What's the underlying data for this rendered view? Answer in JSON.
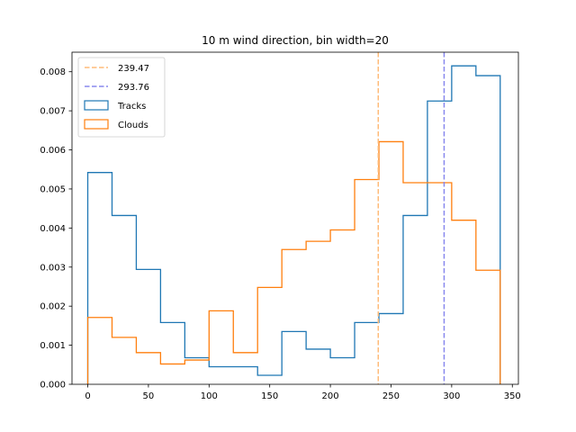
{
  "chart_data": {
    "type": "histogram",
    "title": "10 m wind direction, bin width=20",
    "xlabel": "",
    "ylabel": "",
    "xlim": [
      -13,
      355
    ],
    "ylim": [
      0,
      0.0085
    ],
    "bin_edges": [
      0,
      20,
      40,
      60,
      80,
      100,
      120,
      140,
      160,
      180,
      200,
      220,
      240,
      260,
      280,
      300,
      320,
      340
    ],
    "x_ticks": [
      0,
      50,
      100,
      150,
      200,
      250,
      300,
      350
    ],
    "x_tick_labels": [
      "0",
      "50",
      "100",
      "150",
      "200",
      "250",
      "300",
      "350"
    ],
    "y_ticks": [
      0,
      0.001,
      0.002,
      0.003,
      0.004,
      0.005,
      0.006,
      0.007,
      0.008
    ],
    "y_tick_labels": [
      "0.000",
      "0.001",
      "0.002",
      "0.003",
      "0.004",
      "0.005",
      "0.006",
      "0.007",
      "0.008"
    ],
    "series": [
      {
        "name": "Tracks",
        "color": "#1f77b4",
        "style": "step",
        "values": [
          0.00542,
          0.00432,
          0.00294,
          0.00158,
          0.00068,
          0.00045,
          0.00045,
          0.00023,
          0.00135,
          0.0009,
          0.00068,
          0.00158,
          0.00181,
          0.00432,
          0.00725,
          0.00815,
          0.0079
        ]
      },
      {
        "name": "Clouds",
        "color": "#ff7f0e",
        "style": "step",
        "values": [
          0.00171,
          0.0012,
          0.00081,
          0.00052,
          0.00062,
          0.00188,
          0.00081,
          0.00248,
          0.00345,
          0.00366,
          0.00395,
          0.00524,
          0.00621,
          0.00516,
          0.00516,
          0.0042,
          0.00292
        ]
      }
    ],
    "reference_lines": [
      {
        "name": "239.47",
        "x": 239.47,
        "color": "#ffbb78",
        "style": "dashed"
      },
      {
        "name": "293.76",
        "x": 293.76,
        "color": "#8888ee",
        "style": "dashed"
      }
    ],
    "legend": {
      "placement": "upper-left",
      "entries": [
        "239.47",
        "293.76",
        "Tracks",
        "Clouds"
      ]
    },
    "grid": false
  }
}
